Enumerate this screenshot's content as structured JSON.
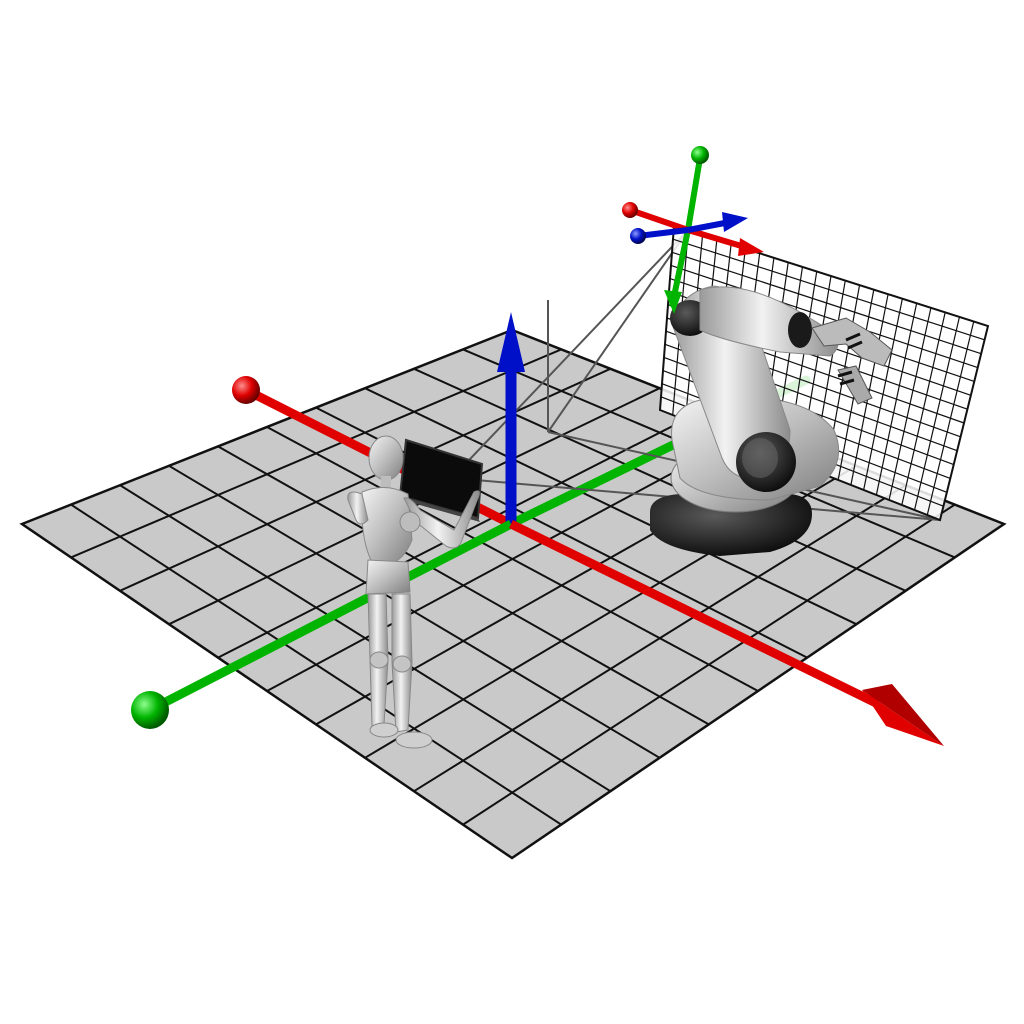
{
  "scene": {
    "background": "#ffffff",
    "floor": {
      "fill": "#c9c9c9",
      "line_color": "#111111",
      "cells": 10
    },
    "colors": {
      "x_axis": "#e00000",
      "y_axis": "#00b400",
      "z_axis": "#0010c8",
      "robot_body": "#c8c8c8",
      "robot_base": "#1a1a1a",
      "human": "#d6d6d6",
      "tablet": "#000000",
      "workspace_plane": "#ffffff",
      "frustum_line": "#555555"
    },
    "icons": {
      "world_frame": "world-coordinate-frame-icon",
      "tool_frame": "tool-coordinate-frame-icon",
      "robot": "industrial-robot-arm-icon",
      "operator": "mannequin-operator-icon",
      "tablet": "tablet-device-icon"
    }
  }
}
